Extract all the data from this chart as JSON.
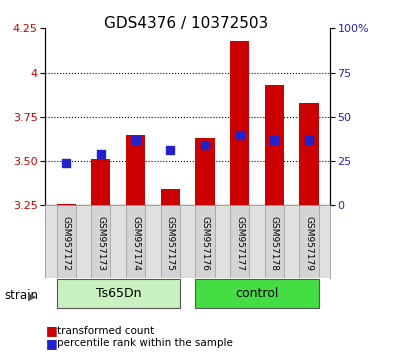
{
  "title": "GDS4376 / 10372503",
  "samples": [
    "GSM957172",
    "GSM957173",
    "GSM957174",
    "GSM957175",
    "GSM957176",
    "GSM957177",
    "GSM957178",
    "GSM957179"
  ],
  "red_values": [
    3.26,
    3.51,
    3.65,
    3.34,
    3.63,
    4.18,
    3.93,
    3.83
  ],
  "blue_values": [
    24,
    29,
    37,
    31,
    34,
    40,
    37,
    37
  ],
  "bar_base": 3.25,
  "ylim": [
    3.25,
    4.25
  ],
  "y2lim": [
    0,
    100
  ],
  "yticks": [
    3.25,
    3.5,
    3.75,
    4.0,
    4.25
  ],
  "y2ticks": [
    0,
    25,
    50,
    75,
    100
  ],
  "strain_groups": [
    {
      "label": "Ts65Dn",
      "indices": [
        0,
        1,
        2,
        3
      ],
      "color": "#c8f0c0"
    },
    {
      "label": "control",
      "indices": [
        4,
        5,
        6,
        7
      ],
      "color": "#44dd44"
    }
  ],
  "red_color": "#cc0000",
  "blue_color": "#2222cc",
  "bar_width": 0.55,
  "legend_red": "transformed count",
  "legend_blue": "percentile rank within the sample",
  "strain_label": "strain"
}
